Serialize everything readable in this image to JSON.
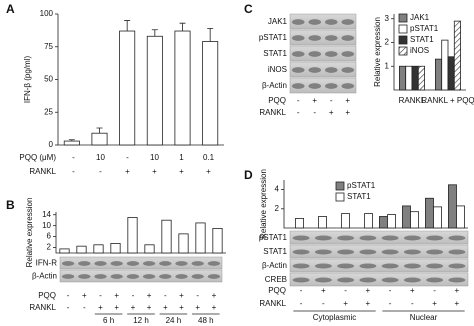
{
  "panel_labels": [
    "A",
    "B",
    "C",
    "D"
  ],
  "chart_data": [
    {
      "type": "bar",
      "ylabel": "IFN-β (pg/ml)",
      "color": "#ffffff",
      "values": [
        3,
        9,
        87,
        83,
        87,
        79
      ],
      "errors": [
        1,
        4,
        8,
        5,
        6,
        10
      ],
      "ylim": [
        0,
        100
      ],
      "yticks": [
        0,
        25,
        50,
        75,
        100
      ],
      "conditions": [
        {
          "name": "PQQ (μM)",
          "values": [
            "-",
            "10",
            "-",
            "10",
            "1",
            "0.1"
          ]
        },
        {
          "name": "RANKL",
          "values": [
            "-",
            "-",
            "+",
            "+",
            "+",
            "+"
          ]
        }
      ]
    },
    {
      "type": "bar",
      "ylabel": "Relative expression",
      "color": "#ffffff",
      "values": [
        1.5,
        2.5,
        3,
        3.5,
        13,
        3,
        12,
        7,
        11,
        9
      ],
      "ylim": [
        0,
        15
      ],
      "yticks": [
        2,
        6,
        10,
        14
      ],
      "blots": [
        "IFN-R",
        "β-Actin"
      ],
      "conditions": [
        {
          "name": "PQQ",
          "values": [
            "-",
            "+",
            "-",
            "+",
            "-",
            "+",
            "-",
            "+",
            "-",
            "+"
          ]
        },
        {
          "name": "RANKL",
          "values": [
            "-",
            "-",
            "+",
            "+",
            "+",
            "+",
            "+",
            "+",
            "+",
            "+"
          ]
        }
      ],
      "timepoints": [
        "6 h",
        "12 h",
        "24 h",
        "48 h"
      ]
    },
    {
      "type": "grouped_bar",
      "ylabel": "Relative expression",
      "categories": [
        "RANKL",
        "RANKL + PQQ"
      ],
      "series": [
        {
          "name": "JAK1",
          "color": "#808080",
          "values": [
            1,
            1.3
          ]
        },
        {
          "name": "pSTAT1",
          "color": "#ffffff",
          "values": [
            1,
            2.1
          ]
        },
        {
          "name": "STAT1",
          "color": "#333333",
          "values": [
            1,
            1.4
          ]
        },
        {
          "name": "iNOS",
          "color": "#ffffff",
          "hatch": true,
          "values": [
            1,
            2.9
          ]
        }
      ],
      "ylim": [
        0,
        3.2
      ],
      "yticks": [
        1,
        2,
        3
      ],
      "legend": "upper left",
      "blots": [
        "JAK1",
        "pSTAT1",
        "STAT1",
        "iNOS",
        "β-Actin"
      ],
      "conditions": [
        {
          "name": "PQQ",
          "values": [
            "-",
            "+",
            "-",
            "+"
          ]
        },
        {
          "name": "RANKL",
          "values": [
            "-",
            "-",
            "+",
            "+"
          ]
        }
      ]
    },
    {
      "type": "grouped_bar",
      "ylabel": "Relative expression",
      "series": [
        {
          "name": "pSTAT1",
          "color": "#808080",
          "values": [
            null,
            null,
            null,
            null,
            1.2,
            2.3,
            3.1,
            4.5
          ]
        },
        {
          "name": "STAT1",
          "color": "#ffffff",
          "values": [
            1,
            1.2,
            1.5,
            1.5,
            1.4,
            1.7,
            2.2,
            2.3
          ]
        }
      ],
      "ylim": [
        0,
        5
      ],
      "yticks": [
        2,
        4
      ],
      "legend": "upper left",
      "blots": [
        "pSTAT1",
        "STAT1",
        "β-Actin",
        "CREB"
      ],
      "conditions": [
        {
          "name": "PQQ",
          "values": [
            "-",
            "+",
            "-",
            "+",
            "-",
            "+",
            "-",
            "+"
          ]
        },
        {
          "name": "RANKL",
          "values": [
            "-",
            "-",
            "+",
            "+",
            "-",
            "-",
            "+",
            "+"
          ]
        }
      ],
      "groups": [
        "Cytoplasmic",
        "Nuclear"
      ]
    }
  ]
}
